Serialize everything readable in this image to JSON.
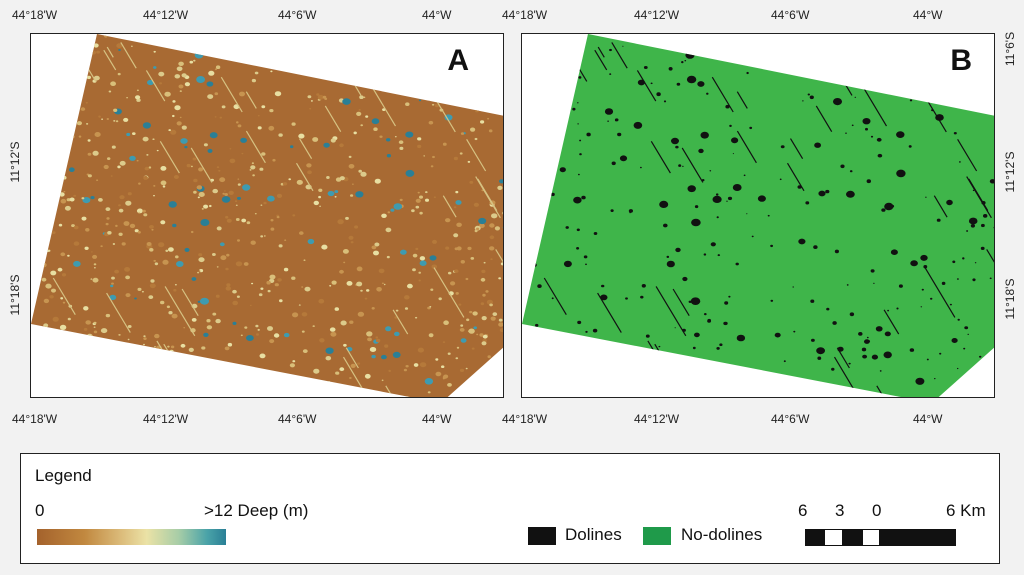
{
  "panel_a": {
    "letter": "A"
  },
  "panel_b": {
    "letter": "B"
  },
  "coords": {
    "lon_1": "44°18'W",
    "lon_2": "44°12'W",
    "lon_3": "44°6'W",
    "lon_4": "44°W",
    "lat_1": "11°6'S",
    "lat_2": "11°12'S",
    "lat_3": "11°18'S"
  },
  "legend": {
    "title": "Legend",
    "ramp_min": "0",
    "ramp_max": ">12 Deep (m)",
    "dolines_label": "Dolines",
    "no_dolines_label": "No-dolines",
    "scale_ticks": [
      "6",
      "3",
      "0",
      "6 Km"
    ]
  },
  "colors": {
    "depth_low": "#a4622c",
    "depth_mid": "#ebe2a6",
    "depth_high": "#2a7f96",
    "dolines": "#111111",
    "no_dolines": "#3fb54a",
    "green_legend": "#1f9a4a"
  }
}
